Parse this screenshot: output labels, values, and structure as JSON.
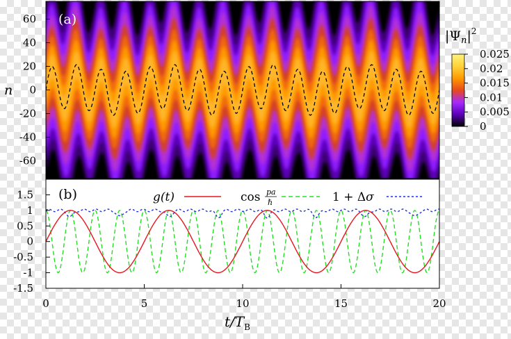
{
  "chart_data": [
    {
      "type": "heatmap",
      "panel_label": "(a)",
      "ylabel": "n",
      "yticks": [
        "60",
        "40",
        "20",
        "0",
        "-20",
        "-40",
        "-60"
      ],
      "ylim": [
        -75,
        75
      ],
      "xlim": [
        0,
        20
      ],
      "colorbar": {
        "label": "|Ψn|²",
        "ticks": [
          "0.025",
          "0.02",
          "0.015",
          "0.01",
          "0.005",
          "0"
        ],
        "range": [
          0,
          0.025
        ],
        "colormap": [
          "#000000",
          "#5b00b8",
          "#a52aff",
          "#e8491c",
          "#ff9a00",
          "#ffd23a",
          "#fff27a"
        ]
      },
      "dashed_center": {
        "amplitude": 22,
        "period": 1.25
      }
    },
    {
      "type": "line",
      "panel_label": "(b)",
      "xlabel": "t/T_B",
      "xticks": [
        "0",
        "5",
        "10",
        "15",
        "20"
      ],
      "yticks": [
        "1.5",
        "1",
        "0.5",
        "0",
        "-0.5",
        "-1",
        "-1.5"
      ],
      "xlim": [
        0,
        20
      ],
      "ylim": [
        -1.5,
        2
      ],
      "series": [
        {
          "name": "g(t)",
          "color": "#e8141e",
          "style": "solid",
          "formula": "sin(2*pi*t/5)",
          "period": 5,
          "amplitude": 1
        },
        {
          "name": "cos pa/ℏ",
          "color": "#20e020",
          "style": "dashed",
          "formula": "cos(2*pi*t/1.25)",
          "period": 1.25,
          "amplitude": 1
        },
        {
          "name": "1 + Δσ",
          "color": "#1f2ee0",
          "style": "dotted",
          "baseline": 1,
          "dip_depth": 0.35,
          "dip_period": 2.5
        }
      ]
    }
  ]
}
